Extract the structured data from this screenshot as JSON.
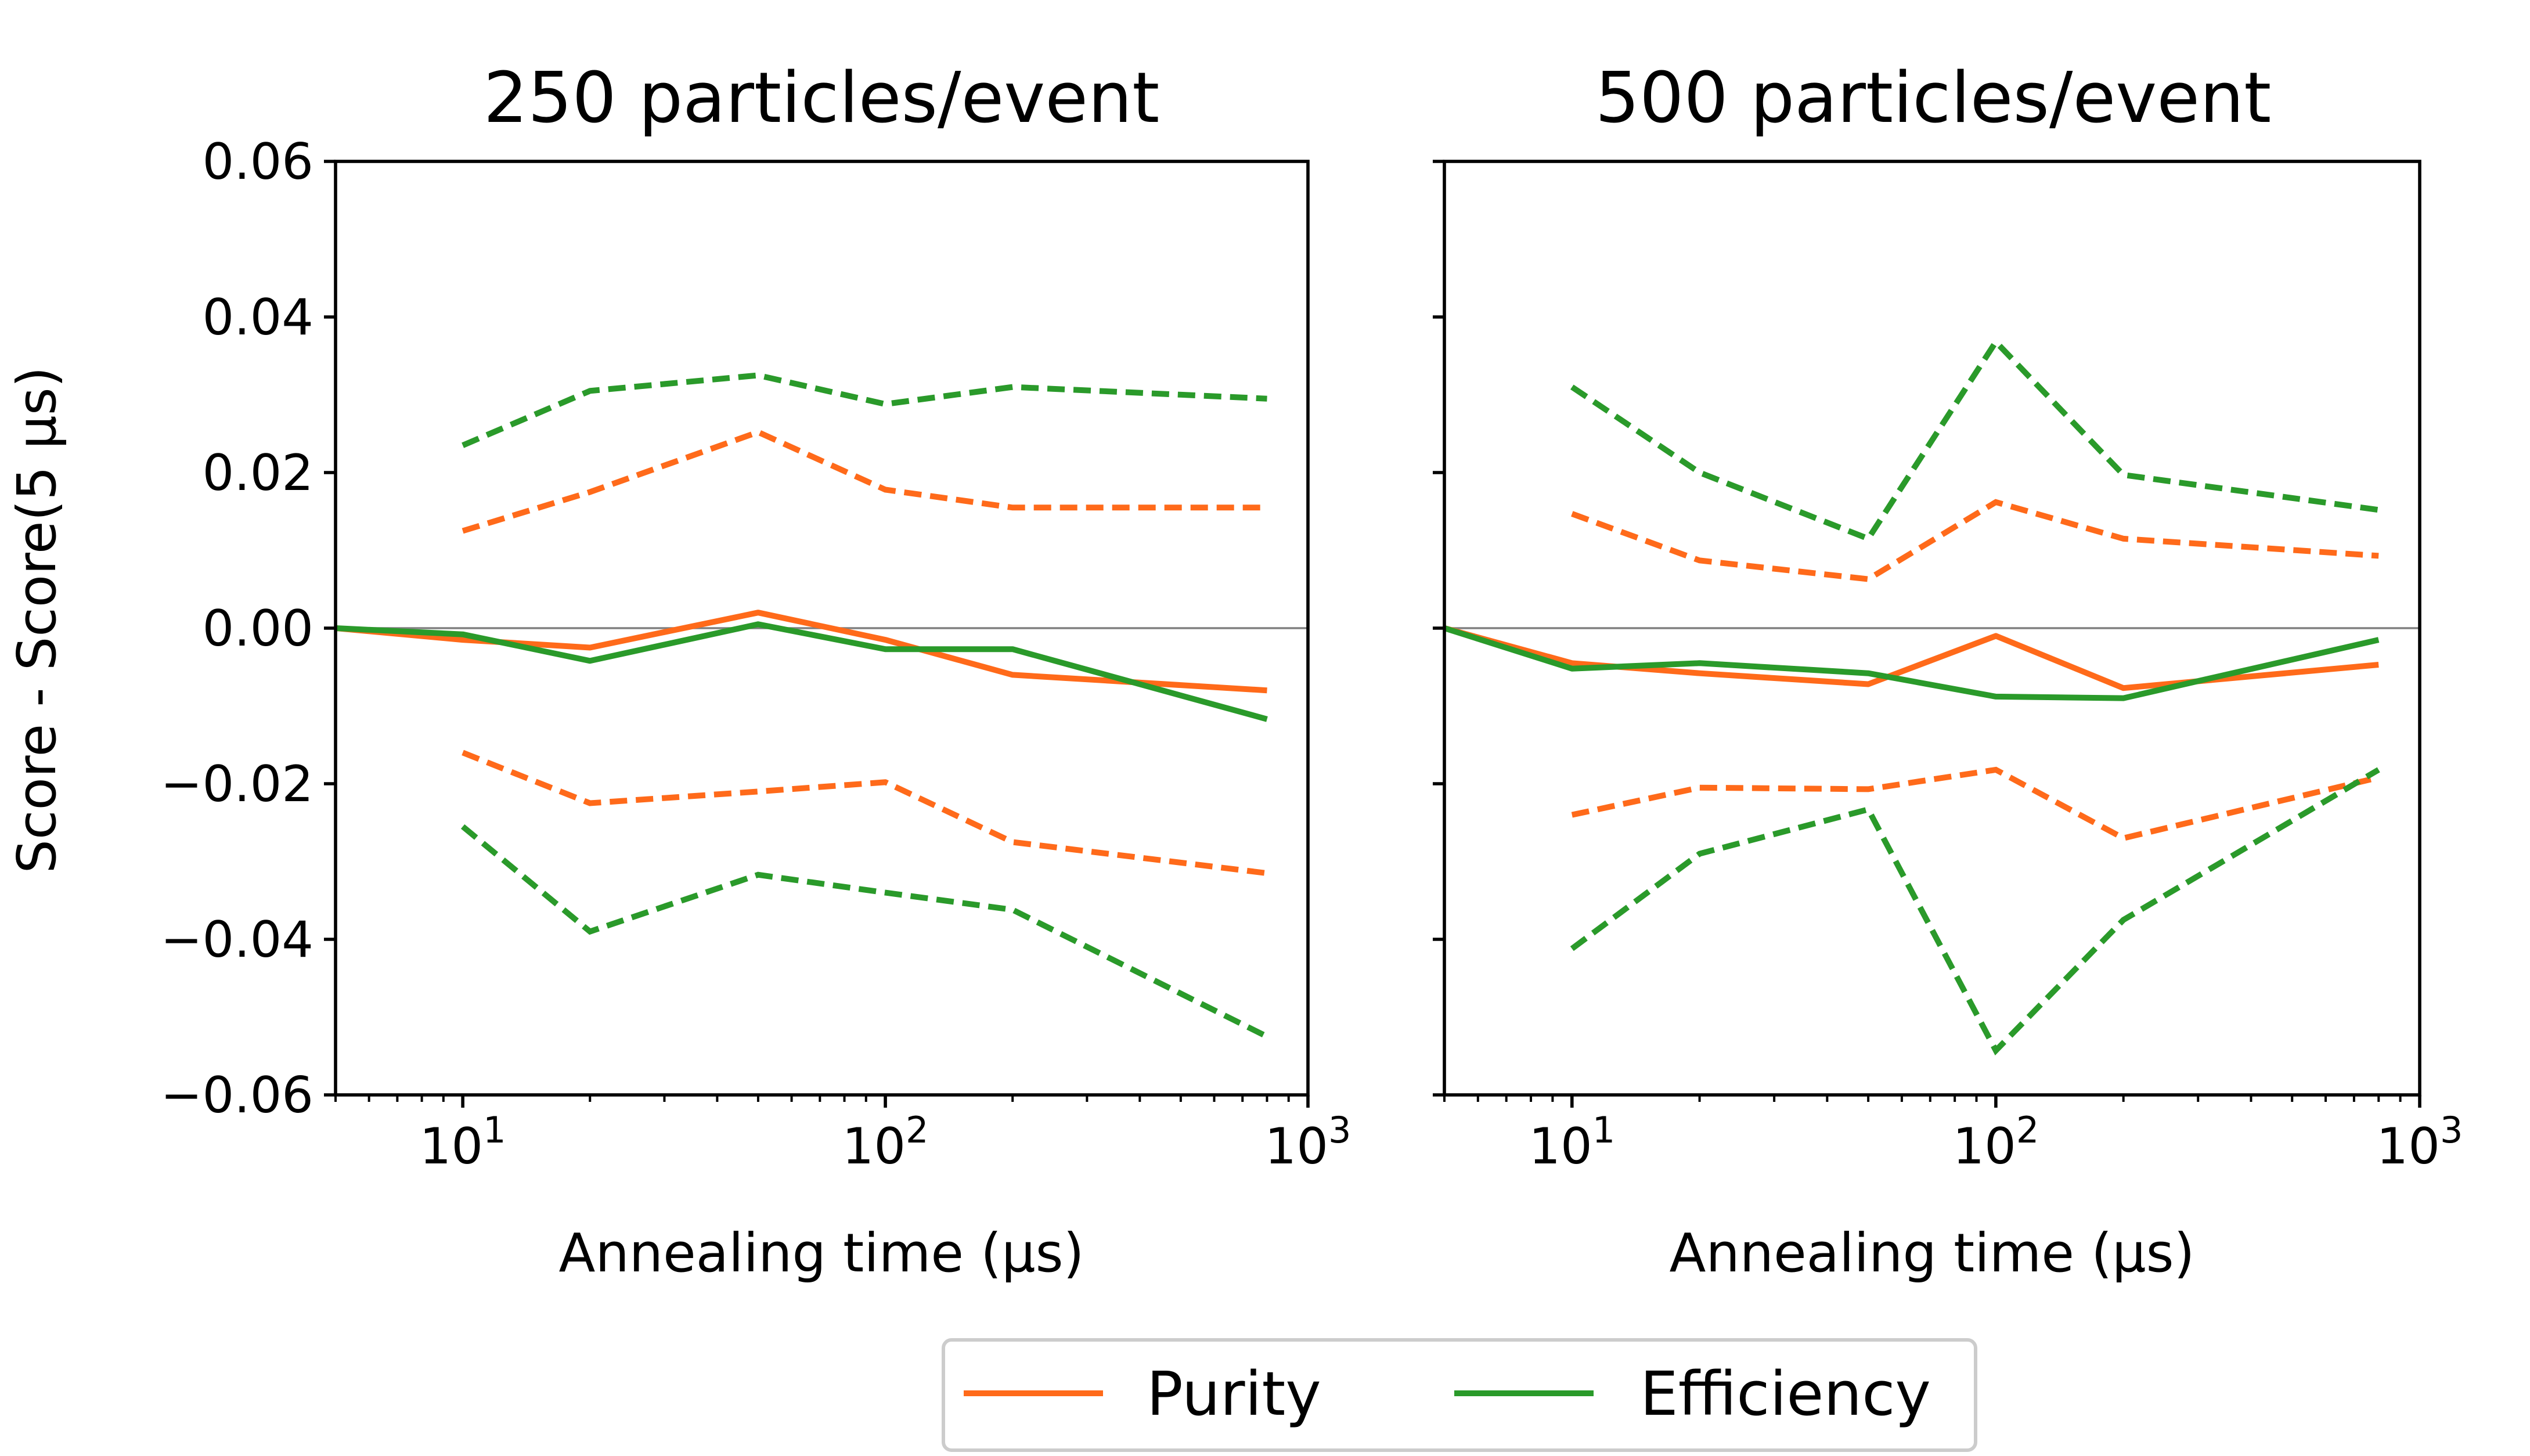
{
  "chart_data": {
    "type": "line",
    "xscale": "log",
    "xlim": [
      5,
      1000
    ],
    "ylim": [
      -0.06,
      0.06
    ],
    "ylabel": "Score - Score(5 μs)",
    "xlabel": "Annealing time (μs)",
    "y_ticks": [
      -0.06,
      -0.04,
      -0.02,
      0.0,
      0.02,
      0.04,
      0.06
    ],
    "y_tick_labels": [
      "−0.06",
      "−0.04",
      "−0.02",
      "0.00",
      "0.02",
      "0.04",
      "0.06"
    ],
    "x_ticks": [
      10,
      100,
      1000
    ],
    "x_tick_labels": [
      {
        "base": "10",
        "exp": "1"
      },
      {
        "base": "10",
        "exp": "2"
      },
      {
        "base": "10",
        "exp": "3"
      }
    ],
    "colors": {
      "purity": "#ff6a1a",
      "efficiency": "#2a9a2a",
      "zero_line": "#808080"
    },
    "legend": [
      {
        "label": "Purity",
        "color": "#ff6a1a"
      },
      {
        "label": "Efficiency",
        "color": "#2a9a2a"
      }
    ],
    "panels": [
      {
        "title": "250 particles/event",
        "series": [
          {
            "name": "Purity",
            "style": "solid",
            "color": "#ff6a1a",
            "x": [
              5,
              10,
              20,
              50,
              100,
              200,
              800
            ],
            "y": [
              0.0,
              -0.0015,
              -0.0025,
              0.002,
              -0.0015,
              -0.006,
              -0.008
            ]
          },
          {
            "name": "Efficiency",
            "style": "solid",
            "color": "#2a9a2a",
            "x": [
              5,
              10,
              20,
              50,
              100,
              200,
              800
            ],
            "y": [
              0.0,
              -0.0008,
              -0.0042,
              0.0005,
              -0.0027,
              -0.0027,
              -0.0117
            ]
          },
          {
            "name": "Purity upper bound",
            "style": "dashed",
            "color": "#ff6a1a",
            "x": [
              10,
              20,
              50,
              100,
              200,
              800
            ],
            "y": [
              0.0125,
              0.0175,
              0.0252,
              0.0178,
              0.0155,
              0.0155
            ]
          },
          {
            "name": "Efficiency upper bound",
            "style": "dashed",
            "color": "#2a9a2a",
            "x": [
              10,
              20,
              50,
              100,
              200,
              800
            ],
            "y": [
              0.0235,
              0.0305,
              0.0325,
              0.0288,
              0.031,
              0.0295
            ]
          },
          {
            "name": "Purity lower bound",
            "style": "dashed",
            "color": "#ff6a1a",
            "x": [
              10,
              20,
              50,
              100,
              200,
              800
            ],
            "y": [
              -0.016,
              -0.0225,
              -0.021,
              -0.0198,
              -0.0275,
              -0.0315
            ]
          },
          {
            "name": "Efficiency lower bound",
            "style": "dashed",
            "color": "#2a9a2a",
            "x": [
              10,
              20,
              50,
              100,
              200,
              800
            ],
            "y": [
              -0.0255,
              -0.039,
              -0.0317,
              -0.034,
              -0.0362,
              -0.0525
            ]
          }
        ]
      },
      {
        "title": "500 particles/event",
        "series": [
          {
            "name": "Purity",
            "style": "solid",
            "color": "#ff6a1a",
            "x": [
              5,
              10,
              20,
              50,
              100,
              200,
              800
            ],
            "y": [
              0.0,
              -0.0045,
              -0.0058,
              -0.0072,
              -0.001,
              -0.0077,
              -0.0047
            ]
          },
          {
            "name": "Efficiency",
            "style": "solid",
            "color": "#2a9a2a",
            "x": [
              5,
              10,
              20,
              50,
              100,
              200,
              800
            ],
            "y": [
              0.0,
              -0.0052,
              -0.0045,
              -0.0058,
              -0.0088,
              -0.009,
              -0.0015
            ]
          },
          {
            "name": "Purity upper bound",
            "style": "dashed",
            "color": "#ff6a1a",
            "x": [
              10,
              20,
              50,
              100,
              200,
              800
            ],
            "y": [
              0.0147,
              0.0087,
              0.0063,
              0.0162,
              0.0115,
              0.0093
            ]
          },
          {
            "name": "Efficiency upper bound",
            "style": "dashed",
            "color": "#2a9a2a",
            "x": [
              10,
              20,
              50,
              100,
              200,
              800
            ],
            "y": [
              0.031,
              0.02,
              0.0115,
              0.0368,
              0.0197,
              0.0152
            ]
          },
          {
            "name": "Purity lower bound",
            "style": "dashed",
            "color": "#ff6a1a",
            "x": [
              10,
              20,
              50,
              100,
              200,
              800
            ],
            "y": [
              -0.024,
              -0.0205,
              -0.0207,
              -0.0182,
              -0.027,
              -0.0192
            ]
          },
          {
            "name": "Efficiency lower bound",
            "style": "dashed",
            "color": "#2a9a2a",
            "x": [
              10,
              20,
              50,
              100,
              200,
              800
            ],
            "y": [
              -0.0412,
              -0.029,
              -0.0233,
              -0.0543,
              -0.0375,
              -0.0182
            ]
          }
        ]
      }
    ]
  }
}
